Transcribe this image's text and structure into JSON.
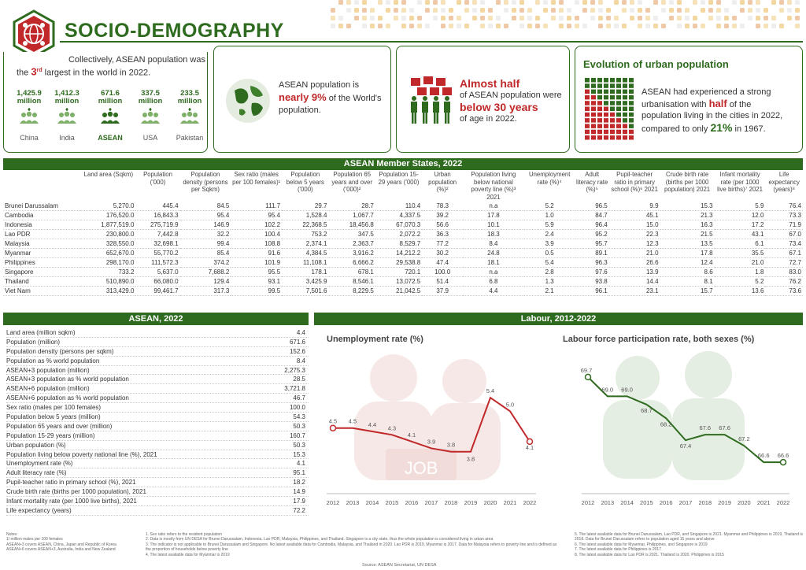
{
  "header": {
    "title": "SOCIO-DEMOGRAPHY"
  },
  "colors": {
    "green": "#2e6b1f",
    "red": "#c0282a",
    "grey": "#777777"
  },
  "card1": {
    "line1": "Collectively,  ASEAN population was",
    "line2a": "the ",
    "rank": "3",
    "rank_suffix": "rd",
    "line2b": " largest in the world in 2022.",
    "countries": [
      {
        "value": "1,425.9",
        "unit": "million",
        "name": "China"
      },
      {
        "value": "1,412.3",
        "unit": "million",
        "name": "India"
      },
      {
        "value": "671.6",
        "unit": "million",
        "name": "ASEAN"
      },
      {
        "value": "337.5",
        "unit": "million",
        "name": "USA"
      },
      {
        "value": "233.5",
        "unit": "million",
        "name": "Pakistan"
      }
    ]
  },
  "card2": {
    "line1": "ASEAN population is",
    "bold": "nearly 9%",
    "line2": " of the World's",
    "line3": "population."
  },
  "card3": {
    "headline": "Almost half",
    "line1": "of ASEAN population were",
    "bold": "below 30 years",
    "line2": "of age in 2022."
  },
  "card4": {
    "title": "Evolution of urban population",
    "line1": "ASEAN had experienced a strong",
    "line2a": "urbanisation with ",
    "half": "half",
    "line2b": " of the",
    "line3": "population living in the cities in 2022,",
    "line4a": "compared to only ",
    "pct": "21%",
    "line4b": " in 1967."
  },
  "members": {
    "title": "ASEAN Member States, 2022",
    "headers": [
      "",
      "Land area (Sqkm)",
      "Population ('000)",
      "Population density (persons per Sqkm)",
      "Sex ratio (males per 100 females)¹",
      "Population below 5 years ('000)",
      "Population 65 years and over ('000)²",
      "Population 15-29 years ('000)",
      "Urban population (%)²",
      "Population living below national poverty line (%)³ 2021",
      "Unemployment rate (%)⁴",
      "Adult literacy rate (%)⁵",
      "Pupil-teacher ratio in primary school (%)⁶ 2021",
      "Crude birth rate (births per 1000 population) 2021",
      "Infant mortality rate (per 1000 live births)⁷ 2021",
      "Life expectancy (years)⁸"
    ],
    "rows": [
      [
        "Brunei Darussalam",
        "5,270.0",
        "445.4",
        "84.5",
        "111.7",
        "29.7",
        "28.7",
        "110.4",
        "78.3",
        "n.a",
        "5.2",
        "96.5",
        "9.9",
        "15.3",
        "5.9",
        "76.4"
      ],
      [
        "Cambodia",
        "176,520.0",
        "16,843.3",
        "95.4",
        "95.4",
        "1,528.4",
        "1,067.7",
        "4,337.5",
        "39.2",
        "17.8",
        "1.0",
        "84.7",
        "45.1",
        "21.3",
        "12.0",
        "73.3"
      ],
      [
        "Indonesia",
        "1,877,519.0",
        "275,719.9",
        "146.9",
        "102.2",
        "22,368.5",
        "18,456.8",
        "67,070.3",
        "56.6",
        "10.1",
        "5.9",
        "96.4",
        "15.0",
        "16.3",
        "17.2",
        "71.9"
      ],
      [
        "Lao PDR",
        "230,800.0",
        "7,442.8",
        "32.2",
        "100.4",
        "753.2",
        "347.5",
        "2,072.2",
        "36.3",
        "18.3",
        "2.4",
        "95.2",
        "22.3",
        "21.5",
        "43.1",
        "67.0"
      ],
      [
        "Malaysia",
        "328,550.0",
        "32,698.1",
        "99.4",
        "108.8",
        "2,374.1",
        "2,363.7",
        "8,529.7",
        "77.2",
        "8.4",
        "3.9",
        "95.7",
        "12.3",
        "13.5",
        "6.1",
        "73.4"
      ],
      [
        "Myanmar",
        "652,670.0",
        "55,770.2",
        "85.4",
        "91.6",
        "4,384.5",
        "3,916.2",
        "14,212.2",
        "30.2",
        "24.8",
        "0.5",
        "89.1",
        "21.0",
        "17.8",
        "35.5",
        "67.1"
      ],
      [
        "Philippines",
        "298,170.0",
        "111,572.3",
        "374.2",
        "101.9",
        "11,108.1",
        "6,666.2",
        "29,538.8",
        "47.4",
        "18.1",
        "5.4",
        "96.3",
        "26.6",
        "12.4",
        "21.0",
        "72.7"
      ],
      [
        "Singapore",
        "733.2",
        "5,637.0",
        "7,688.2",
        "95.5",
        "178.1",
        "678.1",
        "720.1",
        "100.0",
        "n.a",
        "2.8",
        "97.6",
        "13.9",
        "8.6",
        "1.8",
        "83.0"
      ],
      [
        "Thailand",
        "510,890.0",
        "66,080.0",
        "129.4",
        "93.1",
        "3,425.9",
        "8,546.1",
        "13,072.5",
        "51.4",
        "6.8",
        "1.3",
        "93.8",
        "14.4",
        "8.1",
        "5.2",
        "76.2"
      ],
      [
        "Viet Nam",
        "313,429.0",
        "99,461.7",
        "317.3",
        "99.5",
        "7,501.6",
        "8,229.5",
        "21,042.5",
        "37.9",
        "4.4",
        "2.1",
        "96.1",
        "23.1",
        "15.7",
        "13.6",
        "73.6"
      ]
    ]
  },
  "asean": {
    "title": "ASEAN, 2022",
    "rows": [
      [
        "Land area (million sqkm)",
        "4.4"
      ],
      [
        "Population (million)",
        "671.6"
      ],
      [
        "Population density (persons per sqkm)",
        "152.6"
      ],
      [
        "Population as % world population",
        "8.4"
      ],
      [
        "ASEAN+3 population (million)",
        "2,275.3"
      ],
      [
        "ASEAN+3 population as % world population",
        "28.5"
      ],
      [
        "ASEAN+6 population (million)",
        "3,721.8"
      ],
      [
        "ASEAN+6 population as % world population",
        "46.7"
      ],
      [
        "Sex ratio (males per 100 females)",
        "100.0"
      ],
      [
        "Population below 5 years (million)",
        "54.3"
      ],
      [
        "Population 65 years and over (million)",
        "50.3"
      ],
      [
        "Population 15-29 years (million)",
        "160.7"
      ],
      [
        "Urban population (%)",
        "50.3"
      ],
      [
        "Population living below poverty national line (%), 2021",
        "15.3"
      ],
      [
        "Unemployment rate (%)",
        "4.1"
      ],
      [
        "Adult literacy rate (%)",
        "95.1"
      ],
      [
        "Pupil-teacher ratio in primary school (%), 2021",
        "18.2"
      ],
      [
        "Crude birth rate (births per 1000 population), 2021",
        "14.9"
      ],
      [
        "Infant mortality rate (per 1000 live births), 2021",
        "17.9"
      ],
      [
        "Life expectancy (years)",
        "72.2"
      ]
    ]
  },
  "labour": {
    "title": "Labour, 2012-2022",
    "job_text": "JOB"
  },
  "chart_data": [
    {
      "type": "line",
      "title": "Unemployment rate (%)",
      "x": [
        "2012",
        "2013",
        "2014",
        "2015",
        "2016",
        "2017",
        "2018",
        "2019",
        "2020",
        "2021",
        "2022"
      ],
      "values": [
        4.5,
        4.5,
        4.4,
        4.3,
        4.1,
        3.9,
        3.8,
        3.8,
        5.4,
        5.0,
        4.1
      ],
      "labels": [
        "4.5",
        "4.5",
        "4.4",
        "4.3",
        "4.1",
        "3.9",
        "3.8",
        "3.8",
        "5.4",
        "5.0",
        "4.1"
      ],
      "ylim": [
        3.0,
        6.5
      ],
      "color": "#c0282a"
    },
    {
      "type": "line",
      "title": "Labour force participation rate, both sexes (%)",
      "x": [
        "2012",
        "2013",
        "2014",
        "2015",
        "2016",
        "2017",
        "2018",
        "2019",
        "2020",
        "2021",
        "2022"
      ],
      "values": [
        69.7,
        69.0,
        69.0,
        68.7,
        68.2,
        67.4,
        67.6,
        67.6,
        67.2,
        66.6,
        66.6
      ],
      "labels": [
        "69.7",
        "69.0",
        "69.0",
        "68.7",
        "68.2",
        "67.4",
        "67.6",
        "67.6",
        "67.2",
        "66.6",
        "66.6"
      ],
      "ylim": [
        66.0,
        70.3
      ],
      "color": "#2e6b1f"
    }
  ],
  "footnotes": {
    "col1": [
      "Notes:",
      "1/ million males per 100 females",
      "ASEAN+3 covers ASEAN, China, Japan and Republic of Korea",
      "ASEAN+6 covers ASEAN+3, Australia, India and New Zealand"
    ],
    "col2": [
      "1. Sex ratio refers to the resident population",
      "2. Data is mostly from UN DESA for Brunei Darussalam, Indonesia, Lao PDR, Malaysia, Philippines, and Thailand. Singapore is a city state, thus the whole population is considered living in urban area",
      "3. The indicator is not applicable to Brunei Darussalam and Singapore. No latest available data for Cambodia, Malaysia, and Thailand in 2020. Lao PDR is 2019, Myanmar is 2017. Data for Malaysia refers to poverty line and is defined as the proportion of households below poverty line",
      "4. The latest available data for Myanmar is 2019"
    ],
    "col3": [
      "5. The latest available data for Brunei Darussalam, Lao PDR, and Singapore is 2021. Myanmar and Philippines is 2019, Thailand is 2018. Data for Brunei Darussalam refers to population aged 15 years and above",
      "6. The latest available data for Myanmar, Philippines, and Singapore is 2019",
      "7. The latest available data for Philippines is 2017",
      "8. The latest available data for Lao PDR is 2021. Thailand is 2020. Philippines is 2015"
    ],
    "source": "Source: ASEAN Secretariat, UN DESA"
  }
}
